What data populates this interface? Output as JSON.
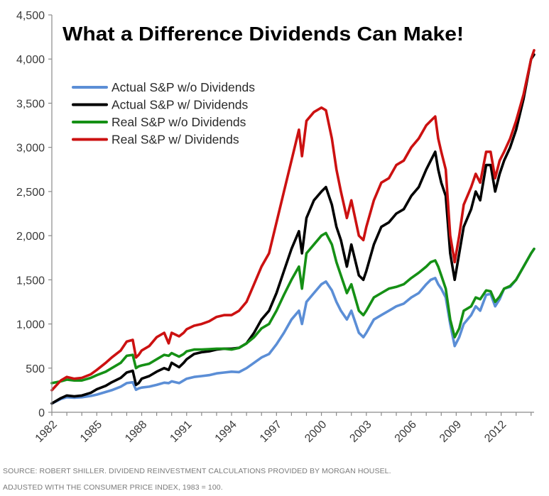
{
  "chart_data": {
    "type": "line",
    "title": "What a Difference Dividends Can Make!",
    "xlabel": "",
    "ylabel": "",
    "xlim": [
      1982,
      2014.2
    ],
    "ylim": [
      0,
      4500
    ],
    "x_ticks": [
      "1982",
      "1985",
      "1988",
      "1991",
      "1994",
      "1997",
      "2000",
      "2003",
      "2006",
      "2009",
      "2012"
    ],
    "y_ticks": [
      "0",
      "500",
      "1,000",
      "1,500",
      "2,000",
      "2,500",
      "3,000",
      "3,500",
      "4,000",
      "4,500"
    ],
    "legend_position": "top-left",
    "series": [
      {
        "name": "Actual S&P w/o Dividends",
        "color": "#5b8ed6",
        "x": [
          1982.0,
          1982.6,
          1983.0,
          1983.5,
          1984.0,
          1984.6,
          1985.0,
          1985.6,
          1986.0,
          1986.6,
          1987.0,
          1987.4,
          1987.62,
          1987.8,
          1988.0,
          1988.5,
          1989.0,
          1989.5,
          1989.8,
          1990.0,
          1990.5,
          1990.8,
          1991.0,
          1991.5,
          1992.0,
          1992.5,
          1993.0,
          1993.5,
          1994.0,
          1994.5,
          1995.0,
          1995.5,
          1996.0,
          1996.5,
          1997.0,
          1997.5,
          1998.0,
          1998.5,
          1998.7,
          1999.0,
          1999.5,
          2000.0,
          2000.3,
          2000.7,
          2001.0,
          2001.3,
          2001.7,
          2002.0,
          2002.5,
          2002.8,
          2003.0,
          2003.5,
          2004.0,
          2004.5,
          2005.0,
          2005.5,
          2006.0,
          2006.5,
          2007.0,
          2007.3,
          2007.6,
          2007.8,
          2008.0,
          2008.3,
          2008.6,
          2008.9,
          2009.2,
          2009.5,
          2010.0,
          2010.3,
          2010.6,
          2011.0,
          2011.3,
          2011.6,
          2011.9,
          2012.2,
          2012.6,
          2013.0,
          2013.5,
          2014.0,
          2014.2
        ],
        "values": [
          100,
          150,
          170,
          165,
          170,
          185,
          200,
          230,
          250,
          290,
          330,
          340,
          255,
          270,
          280,
          290,
          310,
          335,
          330,
          350,
          330,
          360,
          380,
          400,
          410,
          420,
          440,
          450,
          460,
          455,
          500,
          560,
          620,
          660,
          770,
          900,
          1050,
          1150,
          1000,
          1250,
          1350,
          1450,
          1480,
          1380,
          1250,
          1150,
          1050,
          1150,
          900,
          850,
          900,
          1050,
          1100,
          1150,
          1200,
          1230,
          1300,
          1350,
          1450,
          1500,
          1520,
          1450,
          1400,
          1300,
          1000,
          750,
          850,
          1000,
          1100,
          1200,
          1150,
          1330,
          1340,
          1200,
          1280,
          1400,
          1420,
          1500,
          1650,
          1800,
          1850
        ]
      },
      {
        "name": "Actual S&P w/ Dividends",
        "color": "#000000",
        "x": [
          1982.0,
          1982.6,
          1983.0,
          1983.5,
          1984.0,
          1984.6,
          1985.0,
          1985.6,
          1986.0,
          1986.6,
          1987.0,
          1987.4,
          1987.62,
          1987.8,
          1988.0,
          1988.5,
          1989.0,
          1989.5,
          1989.8,
          1990.0,
          1990.5,
          1990.8,
          1991.0,
          1991.5,
          1992.0,
          1992.5,
          1993.0,
          1993.5,
          1994.0,
          1994.5,
          1995.0,
          1995.5,
          1996.0,
          1996.5,
          1997.0,
          1997.5,
          1998.0,
          1998.5,
          1998.7,
          1999.0,
          1999.5,
          2000.0,
          2000.3,
          2000.7,
          2001.0,
          2001.3,
          2001.7,
          2002.0,
          2002.5,
          2002.8,
          2003.0,
          2003.5,
          2004.0,
          2004.5,
          2005.0,
          2005.5,
          2006.0,
          2006.5,
          2007.0,
          2007.3,
          2007.6,
          2007.8,
          2008.0,
          2008.3,
          2008.6,
          2008.9,
          2009.2,
          2009.5,
          2010.0,
          2010.3,
          2010.6,
          2011.0,
          2011.3,
          2011.6,
          2011.9,
          2012.2,
          2012.6,
          2013.0,
          2013.5,
          2014.0,
          2014.2
        ],
        "values": [
          100,
          160,
          190,
          180,
          190,
          220,
          260,
          300,
          340,
          390,
          450,
          470,
          310,
          330,
          380,
          410,
          460,
          500,
          480,
          560,
          510,
          560,
          600,
          660,
          680,
          690,
          710,
          720,
          720,
          730,
          780,
          900,
          1050,
          1150,
          1350,
          1600,
          1850,
          2050,
          1800,
          2200,
          2400,
          2500,
          2550,
          2350,
          2100,
          1950,
          1650,
          1900,
          1550,
          1500,
          1600,
          1900,
          2100,
          2150,
          2250,
          2300,
          2450,
          2550,
          2750,
          2850,
          2950,
          2750,
          2600,
          2450,
          1800,
          1500,
          1800,
          2100,
          2300,
          2500,
          2400,
          2800,
          2800,
          2500,
          2700,
          2850,
          3000,
          3200,
          3550,
          4000,
          4050
        ]
      },
      {
        "name": "Real S&P w/o Dividends",
        "color": "#159015",
        "x": [
          1982.0,
          1982.6,
          1983.0,
          1983.5,
          1984.0,
          1984.6,
          1985.0,
          1985.6,
          1986.0,
          1986.6,
          1987.0,
          1987.4,
          1987.62,
          1987.8,
          1988.0,
          1988.5,
          1989.0,
          1989.5,
          1989.8,
          1990.0,
          1990.5,
          1990.8,
          1991.0,
          1991.5,
          1992.0,
          1992.5,
          1993.0,
          1993.5,
          1994.0,
          1994.5,
          1995.0,
          1995.5,
          1996.0,
          1996.5,
          1997.0,
          1997.5,
          1998.0,
          1998.5,
          1998.7,
          1999.0,
          1999.5,
          2000.0,
          2000.3,
          2000.7,
          2001.0,
          2001.3,
          2001.7,
          2002.0,
          2002.5,
          2002.8,
          2003.0,
          2003.5,
          2004.0,
          2004.5,
          2005.0,
          2005.5,
          2006.0,
          2006.5,
          2007.0,
          2007.3,
          2007.6,
          2007.8,
          2008.0,
          2008.3,
          2008.6,
          2008.9,
          2009.2,
          2009.5,
          2010.0,
          2010.3,
          2010.6,
          2011.0,
          2011.3,
          2011.6,
          2011.9,
          2012.2,
          2012.6,
          2013.0,
          2013.5,
          2014.0,
          2014.2
        ],
        "values": [
          330,
          350,
          370,
          360,
          360,
          390,
          420,
          460,
          500,
          560,
          640,
          650,
          500,
          520,
          530,
          550,
          600,
          650,
          640,
          670,
          630,
          660,
          690,
          710,
          710,
          715,
          720,
          720,
          710,
          730,
          780,
          850,
          950,
          1000,
          1150,
          1330,
          1500,
          1650,
          1400,
          1800,
          1900,
          2000,
          2030,
          1900,
          1700,
          1550,
          1350,
          1450,
          1150,
          1100,
          1150,
          1300,
          1350,
          1400,
          1420,
          1450,
          1520,
          1580,
          1650,
          1700,
          1720,
          1650,
          1550,
          1400,
          1050,
          850,
          950,
          1150,
          1200,
          1300,
          1280,
          1380,
          1370,
          1250,
          1310,
          1400,
          1430,
          1500,
          1650,
          1800,
          1850
        ]
      },
      {
        "name": "Real S&P w/ Dividends",
        "color": "#cc1111",
        "x": [
          1982.0,
          1982.6,
          1983.0,
          1983.5,
          1984.0,
          1984.6,
          1985.0,
          1985.6,
          1986.0,
          1986.6,
          1987.0,
          1987.4,
          1987.62,
          1987.8,
          1988.0,
          1988.5,
          1989.0,
          1989.5,
          1989.8,
          1990.0,
          1990.5,
          1990.8,
          1991.0,
          1991.5,
          1992.0,
          1992.5,
          1993.0,
          1993.5,
          1994.0,
          1994.5,
          1995.0,
          1995.5,
          1996.0,
          1996.5,
          1997.0,
          1997.5,
          1998.0,
          1998.5,
          1998.7,
          1999.0,
          1999.5,
          2000.0,
          2000.3,
          2000.7,
          2001.0,
          2001.3,
          2001.7,
          2002.0,
          2002.5,
          2002.8,
          2003.0,
          2003.5,
          2004.0,
          2004.5,
          2005.0,
          2005.5,
          2006.0,
          2006.5,
          2007.0,
          2007.3,
          2007.6,
          2007.8,
          2008.0,
          2008.3,
          2008.6,
          2008.9,
          2009.2,
          2009.5,
          2010.0,
          2010.3,
          2010.6,
          2011.0,
          2011.3,
          2011.6,
          2011.9,
          2012.2,
          2012.6,
          2013.0,
          2013.5,
          2014.0,
          2014.2
        ],
        "values": [
          250,
          360,
          400,
          380,
          390,
          430,
          480,
          560,
          620,
          700,
          800,
          820,
          620,
          650,
          700,
          750,
          850,
          900,
          780,
          900,
          860,
          900,
          940,
          980,
          1000,
          1030,
          1080,
          1100,
          1100,
          1150,
          1250,
          1450,
          1650,
          1800,
          2150,
          2500,
          2850,
          3200,
          2900,
          3300,
          3400,
          3450,
          3420,
          3100,
          2750,
          2500,
          2200,
          2400,
          2000,
          1950,
          2100,
          2400,
          2600,
          2650,
          2800,
          2850,
          3000,
          3100,
          3250,
          3300,
          3350,
          3100,
          2950,
          2750,
          2000,
          1700,
          2000,
          2350,
          2550,
          2700,
          2600,
          2950,
          2950,
          2650,
          2850,
          2950,
          3100,
          3300,
          3600,
          4000,
          4100
        ]
      }
    ]
  },
  "footer": {
    "source": "SOURCE: ROBERT SHILLER. DIVIDEND REINVESTMENT CALCULATIONS PROVIDED BY MORGAN HOUSEL.",
    "note": "ADJUSTED WITH THE CONSUMER PRICE INDEX, 1983 = 100."
  }
}
